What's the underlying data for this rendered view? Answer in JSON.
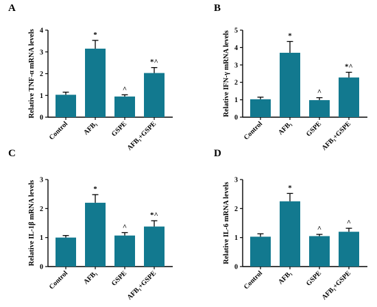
{
  "colors": {
    "bar": "#12798f",
    "axis": "#000000"
  },
  "chart_data": [
    {
      "type": "bar",
      "panel": "A",
      "ylabel": "Relative TNF-α mRNA levels",
      "categories": [
        "Control",
        "AFB₁",
        "GSPE",
        "AFB₁+GSPE"
      ],
      "values": [
        1.03,
        3.15,
        0.95,
        2.03
      ],
      "errors": [
        0.12,
        0.38,
        0.08,
        0.25
      ],
      "significance": [
        "",
        "*",
        "^",
        "*^"
      ],
      "ylim": [
        0,
        4
      ],
      "yticks": [
        "0",
        "1",
        "2",
        "3",
        "4"
      ]
    },
    {
      "type": "bar",
      "panel": "B",
      "ylabel": "Relative IFN-γ mRNA levels",
      "categories": [
        "Control",
        "AFB₁",
        "GSPE",
        "AFB₁+GSPE"
      ],
      "values": [
        1.03,
        3.7,
        0.98,
        2.28
      ],
      "errors": [
        0.12,
        0.65,
        0.14,
        0.3
      ],
      "significance": [
        "",
        "*",
        "^",
        "*^"
      ],
      "ylim": [
        0,
        5
      ],
      "yticks": [
        "0",
        "1",
        "2",
        "3",
        "4",
        "5"
      ]
    },
    {
      "type": "bar",
      "panel": "C",
      "ylabel": "Relative IL-1β mRNA levels",
      "categories": [
        "Control",
        "AFB₁",
        "GSPE",
        "AFB₁+GSPE"
      ],
      "values": [
        1.0,
        2.2,
        1.07,
        1.38
      ],
      "errors": [
        0.07,
        0.28,
        0.1,
        0.2
      ],
      "significance": [
        "",
        "*",
        "^",
        "*^"
      ],
      "ylim": [
        0,
        3
      ],
      "yticks": [
        "0",
        "1",
        "2",
        "3"
      ]
    },
    {
      "type": "bar",
      "panel": "D",
      "ylabel": "Relative IL-6 mRNA levels",
      "categories": [
        "Control",
        "AFB₁",
        "GSPE",
        "AFB₁+GSPE"
      ],
      "values": [
        1.03,
        2.25,
        1.05,
        1.2
      ],
      "errors": [
        0.1,
        0.27,
        0.06,
        0.12
      ],
      "significance": [
        "",
        "*",
        "^",
        "^"
      ],
      "ylim": [
        0,
        3
      ],
      "yticks": [
        "0",
        "1",
        "2",
        "3"
      ]
    }
  ]
}
